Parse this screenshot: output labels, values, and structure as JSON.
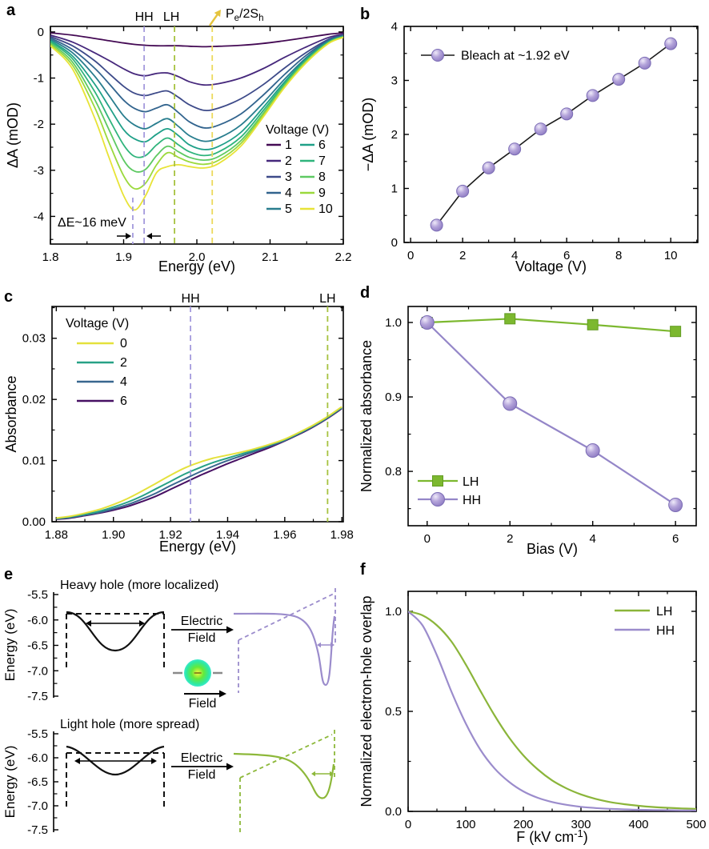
{
  "panels": {
    "a": {
      "label": "a"
    },
    "b": {
      "label": "b"
    },
    "c": {
      "label": "c"
    },
    "d": {
      "label": "d"
    },
    "e": {
      "label": "e"
    },
    "f": {
      "label": "f"
    }
  },
  "chart_data": [
    {
      "id": "a",
      "type": "line",
      "xlabel": "Energy (eV)",
      "ylabel": "ΔA (mOD)",
      "xlim": [
        1.8,
        2.2
      ],
      "ylim": [
        -4.6,
        0.12
      ],
      "xticks": [
        1.8,
        1.9,
        2.0,
        2.1,
        2.2
      ],
      "xtick_labels": [
        "1.8",
        "1.9",
        "2.0",
        "2.1",
        "2.2"
      ],
      "yticks": [
        0,
        -1,
        -2,
        -3,
        -4
      ],
      "ytick_labels": [
        "0",
        "-1",
        "-2",
        "-3",
        "-4"
      ],
      "legend_title": "Voltage (V)",
      "x": [
        1.8,
        1.83,
        1.86,
        1.88,
        1.9,
        1.915,
        1.93,
        1.945,
        1.96,
        1.975,
        1.99,
        2.01,
        2.03,
        2.06,
        2.09,
        2.12,
        2.15,
        2.18,
        2.2
      ],
      "series": [
        {
          "name": "1",
          "color": "#440a54",
          "y": [
            -0.02,
            -0.07,
            -0.14,
            -0.19,
            -0.24,
            -0.27,
            -0.29,
            -0.3,
            -0.3,
            -0.3,
            -0.31,
            -0.32,
            -0.31,
            -0.29,
            -0.25,
            -0.19,
            -0.12,
            -0.05,
            -0.02
          ]
        },
        {
          "name": "2",
          "color": "#46287c",
          "y": [
            -0.07,
            -0.22,
            -0.45,
            -0.62,
            -0.8,
            -0.91,
            -0.95,
            -0.9,
            -0.89,
            -0.97,
            -1.08,
            -1.15,
            -1.12,
            -1.0,
            -0.8,
            -0.55,
            -0.32,
            -0.12,
            -0.05
          ]
        },
        {
          "name": "3",
          "color": "#3d4a89",
          "y": [
            -0.1,
            -0.3,
            -0.62,
            -0.9,
            -1.18,
            -1.33,
            -1.38,
            -1.32,
            -1.28,
            -1.42,
            -1.58,
            -1.7,
            -1.65,
            -1.45,
            -1.15,
            -0.78,
            -0.44,
            -0.16,
            -0.07
          ]
        },
        {
          "name": "4",
          "color": "#32648e",
          "y": [
            -0.13,
            -0.38,
            -0.78,
            -1.12,
            -1.48,
            -1.66,
            -1.73,
            -1.65,
            -1.58,
            -1.75,
            -1.95,
            -2.08,
            -2.02,
            -1.78,
            -1.38,
            -0.92,
            -0.5,
            -0.18,
            -0.08
          ]
        },
        {
          "name": "5",
          "color": "#287d8e",
          "y": [
            -0.16,
            -0.45,
            -0.95,
            -1.38,
            -1.82,
            -2.02,
            -2.1,
            -1.98,
            -1.88,
            -2.05,
            -2.25,
            -2.37,
            -2.3,
            -2.02,
            -1.55,
            -1.02,
            -0.55,
            -0.2,
            -0.09
          ]
        },
        {
          "name": "6",
          "color": "#1fa088",
          "y": [
            -0.19,
            -0.52,
            -1.12,
            -1.62,
            -2.12,
            -2.32,
            -2.38,
            -2.22,
            -2.1,
            -2.25,
            -2.45,
            -2.55,
            -2.48,
            -2.18,
            -1.65,
            -1.08,
            -0.58,
            -0.21,
            -0.1
          ]
        },
        {
          "name": "7",
          "color": "#2fb47c",
          "y": [
            -0.21,
            -0.58,
            -1.28,
            -1.88,
            -2.45,
            -2.7,
            -2.68,
            -2.45,
            -2.3,
            -2.45,
            -2.6,
            -2.68,
            -2.6,
            -2.28,
            -1.72,
            -1.12,
            -0.6,
            -0.22,
            -0.1
          ]
        },
        {
          "name": "8",
          "color": "#5ec962",
          "y": [
            -0.24,
            -0.65,
            -1.45,
            -2.12,
            -2.78,
            -3.02,
            -2.98,
            -2.68,
            -2.48,
            -2.6,
            -2.72,
            -2.78,
            -2.7,
            -2.36,
            -1.78,
            -1.15,
            -0.62,
            -0.23,
            -0.11
          ]
        },
        {
          "name": "9",
          "color": "#9bd93c",
          "y": [
            -0.27,
            -0.72,
            -1.62,
            -2.4,
            -3.12,
            -3.4,
            -3.28,
            -2.88,
            -2.62,
            -2.72,
            -2.82,
            -2.87,
            -2.78,
            -2.42,
            -1.82,
            -1.18,
            -0.64,
            -0.24,
            -0.11
          ]
        },
        {
          "name": "10",
          "color": "#e8e337",
          "y": [
            -0.3,
            -0.8,
            -1.85,
            -2.72,
            -3.55,
            -3.86,
            -3.55,
            -3.05,
            -2.92,
            -2.88,
            -2.92,
            -2.95,
            -2.85,
            -2.48,
            -1.86,
            -1.2,
            -0.66,
            -0.25,
            -0.12
          ]
        }
      ],
      "ref_lines": [
        {
          "label": "HH",
          "x": 1.928,
          "color": "#a49add"
        },
        {
          "label": "LH",
          "x": 1.9695,
          "color": "#a6c23f"
        },
        {
          "label": "P_{e}/2S_{h}",
          "x": 2.021,
          "color": "#ecd95c"
        }
      ],
      "bleach_min_line": {
        "x": 1.9125,
        "color": "#a49add"
      },
      "annotation": "ΔE~16 meV"
    },
    {
      "id": "b",
      "type": "scatter-line",
      "xlabel": "Voltage (V)",
      "ylabel": "−ΔA (mOD)",
      "xlim": [
        -0.25,
        11.04
      ],
      "ylim": [
        0,
        4
      ],
      "xticks": [
        0,
        2,
        4,
        6,
        8,
        10
      ],
      "xtick_labels": [
        "0",
        "2",
        "4",
        "6",
        "8",
        "10"
      ],
      "yticks": [
        0,
        1,
        2,
        3,
        4
      ],
      "ytick_labels": [
        "0",
        "1",
        "2",
        "3",
        "4"
      ],
      "series": [
        {
          "name": "Bleach at ~1.92 eV",
          "marker": "sphere",
          "color": "#9b8ccc",
          "line_color": "#1a1a1a",
          "x": [
            1,
            2,
            3,
            4,
            5,
            6,
            7,
            8,
            9,
            10
          ],
          "y": [
            0.32,
            0.95,
            1.38,
            1.73,
            2.1,
            2.38,
            2.72,
            3.02,
            3.32,
            3.68
          ]
        }
      ]
    },
    {
      "id": "c",
      "type": "line",
      "xlabel": "Energy (eV)",
      "ylabel": "Absorbance",
      "xlim": [
        1.8785,
        1.9805
      ],
      "ylim": [
        0,
        0.0352
      ],
      "xticks": [
        1.88,
        1.9,
        1.92,
        1.94,
        1.96,
        1.98
      ],
      "xtick_labels": [
        "1.88",
        "1.90",
        "1.92",
        "1.94",
        "1.96",
        "1.98"
      ],
      "yticks": [
        0,
        0.01,
        0.02,
        0.03
      ],
      "ytick_labels": [
        "0.00",
        "0.01",
        "0.02",
        "0.03"
      ],
      "legend_title": "Voltage (V)",
      "x": [
        1.88,
        1.885,
        1.89,
        1.895,
        1.9,
        1.905,
        1.91,
        1.915,
        1.92,
        1.925,
        1.93,
        1.935,
        1.94,
        1.945,
        1.95,
        1.955,
        1.96,
        1.965,
        1.97,
        1.975,
        1.98
      ],
      "series": [
        {
          "name": "0",
          "color": "#e4e13c",
          "y": [
            0.0006,
            0.0009,
            0.0014,
            0.002,
            0.0028,
            0.0038,
            0.005,
            0.0063,
            0.0076,
            0.0088,
            0.0097,
            0.0104,
            0.0109,
            0.0114,
            0.012,
            0.0127,
            0.0135,
            0.0146,
            0.0158,
            0.0172,
            0.0188
          ]
        },
        {
          "name": "2",
          "color": "#27a186",
          "y": [
            0.0005,
            0.0008,
            0.0012,
            0.0017,
            0.0024,
            0.0032,
            0.0042,
            0.0054,
            0.0066,
            0.0078,
            0.0088,
            0.0097,
            0.0104,
            0.0111,
            0.0118,
            0.0126,
            0.0134,
            0.0145,
            0.0157,
            0.0171,
            0.0187
          ]
        },
        {
          "name": "4",
          "color": "#39678f",
          "y": [
            0.0005,
            0.0007,
            0.0011,
            0.0015,
            0.0021,
            0.0028,
            0.0037,
            0.0047,
            0.0059,
            0.007,
            0.0081,
            0.0091,
            0.01,
            0.0108,
            0.0116,
            0.0124,
            0.0133,
            0.0144,
            0.0156,
            0.017,
            0.0186
          ]
        },
        {
          "name": "6",
          "color": "#471063",
          "y": [
            0.0004,
            0.0006,
            0.001,
            0.0014,
            0.0019,
            0.0025,
            0.0033,
            0.0042,
            0.0053,
            0.0064,
            0.0075,
            0.0085,
            0.0095,
            0.0104,
            0.0113,
            0.0122,
            0.0132,
            0.0143,
            0.0155,
            0.0169,
            0.0185
          ]
        }
      ],
      "ref_lines": [
        {
          "label": "HH",
          "x": 1.927,
          "color": "#a49add"
        },
        {
          "label": "LH",
          "x": 1.975,
          "color": "#a6c23f"
        }
      ]
    },
    {
      "id": "d",
      "type": "scatter-line",
      "xlabel": "Bias (V)",
      "ylabel": "Normalized absorbance",
      "xlim": [
        -0.46,
        6.5
      ],
      "ylim": [
        0.727,
        1.0215
      ],
      "xticks": [
        0,
        2,
        4,
        6
      ],
      "xtick_labels": [
        "0",
        "2",
        "4",
        "6"
      ],
      "yticks": [
        0.8,
        0.9,
        1.0
      ],
      "ytick_labels": [
        "0.8",
        "0.9",
        "1.0"
      ],
      "series": [
        {
          "name": "LH",
          "marker": "square",
          "color": "#7cb82f",
          "line_color": "#7cb82f",
          "x": [
            0,
            2,
            4,
            6
          ],
          "y": [
            1.0,
            1.005,
            0.997,
            0.988
          ]
        },
        {
          "name": "HH",
          "marker": "circle",
          "color": "#9486c8",
          "line_color": "#9486c8",
          "x": [
            0,
            2,
            4,
            6
          ],
          "y": [
            1.0,
            0.891,
            0.828,
            0.755
          ]
        }
      ]
    },
    {
      "id": "f",
      "type": "line",
      "xlabel": "F (kV cm^{-1})",
      "ylabel": "Normalized electron-hole overlap",
      "xlim": [
        0,
        500
      ],
      "ylim": [
        0,
        1.1
      ],
      "xticks": [
        0,
        100,
        200,
        300,
        400,
        500
      ],
      "xtick_labels": [
        "0",
        "100",
        "200",
        "300",
        "400",
        "500"
      ],
      "yticks": [
        0,
        0.5,
        1.0
      ],
      "ytick_labels": [
        "0.0",
        "0.5",
        "1.0"
      ],
      "x": [
        0,
        25,
        50,
        75,
        100,
        125,
        150,
        175,
        200,
        225,
        250,
        275,
        300,
        325,
        350,
        375,
        400,
        425,
        450,
        475,
        500
      ],
      "series": [
        {
          "name": "LH",
          "color": "#8bb53a",
          "y": [
            1.0,
            0.98,
            0.93,
            0.85,
            0.735,
            0.605,
            0.48,
            0.37,
            0.28,
            0.21,
            0.155,
            0.115,
            0.085,
            0.063,
            0.047,
            0.036,
            0.028,
            0.022,
            0.018,
            0.015,
            0.013
          ]
        },
        {
          "name": "HH",
          "color": "#9b8ccc",
          "y": [
            1.0,
            0.93,
            0.78,
            0.6,
            0.44,
            0.31,
            0.215,
            0.148,
            0.1,
            0.068,
            0.047,
            0.033,
            0.023,
            0.017,
            0.013,
            0.01,
            0.008,
            0.007,
            0.006,
            0.005,
            0.005
          ]
        }
      ]
    }
  ],
  "panel_e": {
    "rows": [
      {
        "title": "Heavy hole (more localized)",
        "ylabel": "Energy (eV)",
        "ytick_labels": [
          "-5.5",
          "-6.0",
          "-6.5",
          "-7.0",
          "-7.5"
        ],
        "arrow_top": "Electric",
        "arrow_bottom": "Field",
        "color": "#9b8ccc"
      },
      {
        "title": "Light hole (more spread)",
        "ylabel": "Energy (eV)",
        "ytick_labels": [
          "-5.5",
          "-6.0",
          "-6.5",
          "-7.0",
          "-7.5"
        ],
        "arrow_top": "Electric",
        "arrow_bottom": "Field",
        "color": "#8db83a"
      }
    ],
    "exciton": {
      "field_label": "Field",
      "charge": "−"
    }
  }
}
